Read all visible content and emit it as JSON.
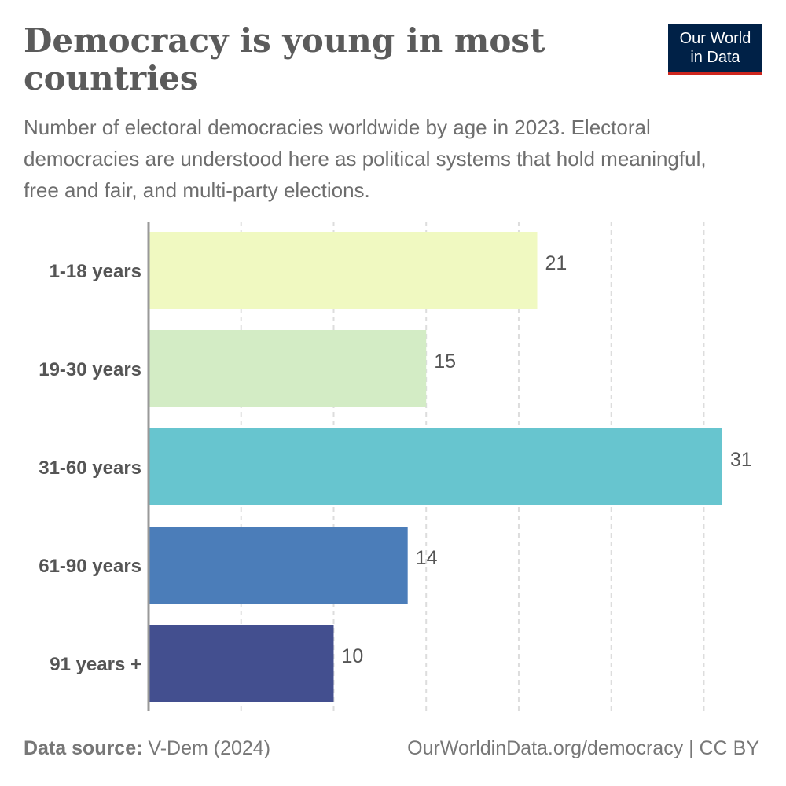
{
  "title": "Democracy is young in most countries",
  "subtitle": "Number of electoral democracies worldwide by age in 2023. Electoral democracies are understood here as political systems that hold meaningful, free and fair, and multi-party elections.",
  "logo": {
    "line1": "Our World",
    "line2": "in Data"
  },
  "footer": {
    "source_label": "Data source:",
    "source": "V-Dem (2024)",
    "url": "OurWorldinData.org/democracy | CC BY"
  },
  "chart_data": {
    "type": "bar",
    "orientation": "horizontal",
    "categories": [
      "1-18 years",
      "19-30 years",
      "31-60 years",
      "61-90 years",
      "91 years +"
    ],
    "values": [
      21,
      15,
      31,
      14,
      10
    ],
    "colors": [
      "#f0f9c1",
      "#d3ecc5",
      "#67c5cf",
      "#4b7db9",
      "#434f8f"
    ],
    "xlim": [
      0,
      31
    ],
    "grid_step": 5,
    "grid": true,
    "data_labels": true
  }
}
